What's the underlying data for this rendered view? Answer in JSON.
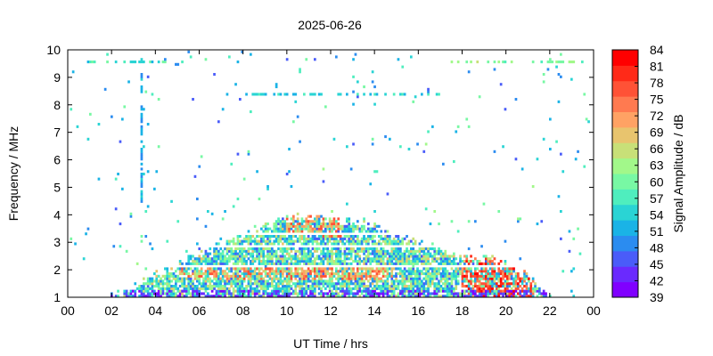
{
  "chart_data": {
    "type": "heatmap",
    "title": "2025-06-26",
    "xlabel": "UT Time / hrs",
    "ylabel": "Frequency / MHz",
    "colorbar_label": "Signal Amplitude / dB",
    "xlim": [
      0,
      24
    ],
    "ylim": [
      1,
      10
    ],
    "x_ticks": [
      "00",
      "02",
      "04",
      "06",
      "08",
      "10",
      "12",
      "14",
      "16",
      "18",
      "20",
      "22",
      "00"
    ],
    "x_tick_values": [
      0,
      2,
      4,
      6,
      8,
      10,
      12,
      14,
      16,
      18,
      20,
      22,
      24
    ],
    "y_ticks": [
      "1",
      "2",
      "3",
      "4",
      "5",
      "6",
      "7",
      "8",
      "9",
      "10"
    ],
    "y_tick_values": [
      1,
      2,
      3,
      4,
      5,
      6,
      7,
      8,
      9,
      10
    ],
    "colorbar_range": [
      39,
      84
    ],
    "colorbar_ticks": [
      "39",
      "42",
      "45",
      "48",
      "51",
      "54",
      "57",
      "60",
      "63",
      "66",
      "69",
      "72",
      "75",
      "78",
      "81",
      "84"
    ],
    "colorbar_tick_values": [
      39,
      42,
      45,
      48,
      51,
      54,
      57,
      60,
      63,
      66,
      69,
      72,
      75,
      78,
      81,
      84
    ],
    "colorbar_colors": [
      "#8000ff",
      "#6a2afe",
      "#4a5cf9",
      "#2b8cf0",
      "#1ab3e6",
      "#2ad4d4",
      "#4feebe",
      "#78f8a4",
      "#a2f88a",
      "#c8e078",
      "#e8c46e",
      "#ffa264",
      "#ff7a50",
      "#ff5236",
      "#ff2a18",
      "#ff0000"
    ],
    "grid": false,
    "legend": "colorbar-right",
    "features": {
      "daytime_envelope": {
        "description_hours": [
          [
            2.0,
            1.0
          ],
          [
            4.0,
            1.8
          ],
          [
            6.0,
            2.6
          ],
          [
            8.0,
            3.3
          ],
          [
            10.0,
            3.9
          ],
          [
            12.0,
            3.9
          ],
          [
            14.0,
            3.6
          ],
          [
            16.0,
            3.0
          ],
          [
            18.0,
            2.5
          ],
          [
            20.0,
            2.3
          ],
          [
            21.0,
            1.8
          ],
          [
            22.0,
            1.0
          ]
        ],
        "typical_db": [
          48,
          66
        ]
      },
      "strong_emission": [
        {
          "x_range": [
            18.0,
            21.5
          ],
          "y_range": [
            1.0,
            3.3
          ],
          "db": [
            72,
            84
          ]
        },
        {
          "x_range": [
            5.0,
            15.0
          ],
          "y_range": [
            1.6,
            2.2
          ],
          "db": [
            66,
            78
          ]
        },
        {
          "x_range": [
            10.0,
            12.5
          ],
          "y_range": [
            3.2,
            4.0
          ],
          "db": [
            66,
            78
          ]
        }
      ],
      "vertical_line": {
        "x": 3.4,
        "y_range": [
          4.5,
          9.5
        ],
        "db": [
          48,
          54
        ]
      },
      "horizontal_bands": [
        {
          "y": 8.4,
          "x_range": [
            7.0,
            17.0
          ],
          "db": [
            51,
            57
          ]
        },
        {
          "y": 9.6,
          "x_range": [
            0.5,
            5.5
          ],
          "db": [
            51,
            60
          ]
        },
        {
          "y": 9.6,
          "x_range": [
            17.5,
            23.5
          ],
          "db": [
            57,
            66
          ]
        }
      ],
      "white_gaps_mhz": [
        2.1,
        2.9,
        3.3
      ]
    }
  }
}
